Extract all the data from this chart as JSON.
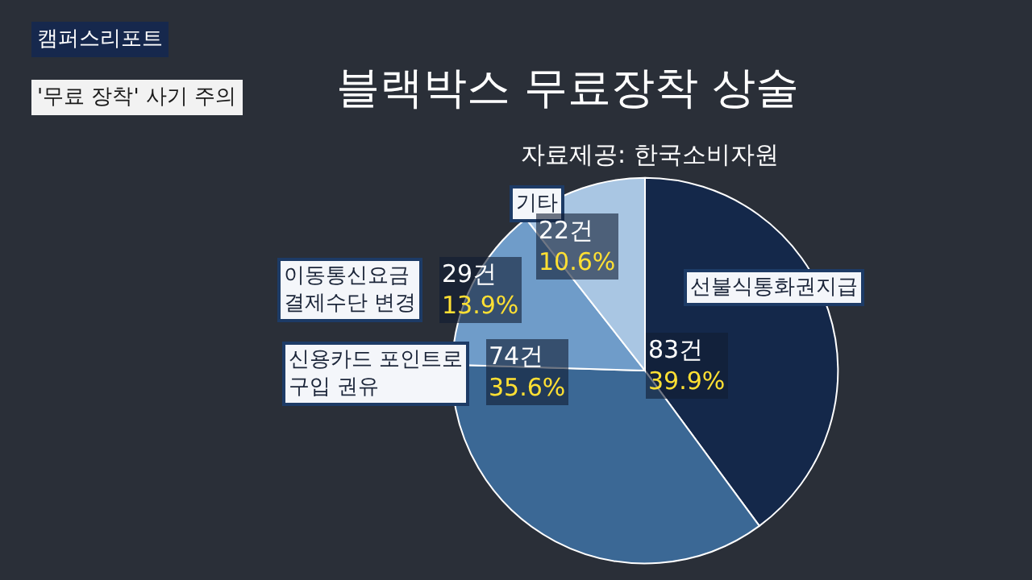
{
  "chart_data": {
    "type": "pie",
    "title": "블랙박스 무료장착 상술",
    "subtitle": "자료제공: 한국소비자원",
    "categories": [
      "선불식통화권지급",
      "신용카드 포인트로 구입 권유",
      "이동통신요금 결제수단 변경",
      "기타"
    ],
    "values": [
      83,
      74,
      29,
      22
    ],
    "value_labels": [
      "83건 39.9%",
      "74건 35.6%",
      "29건 13.9%",
      "22건 10.6%"
    ],
    "colors": [
      "#14284a",
      "#3b6895",
      "#6f9cc9",
      "#a9c6e3"
    ],
    "annotations": [
      "캠퍼스리포트",
      "'무료 장착' 사기 주의"
    ],
    "legend": false
  }
}
